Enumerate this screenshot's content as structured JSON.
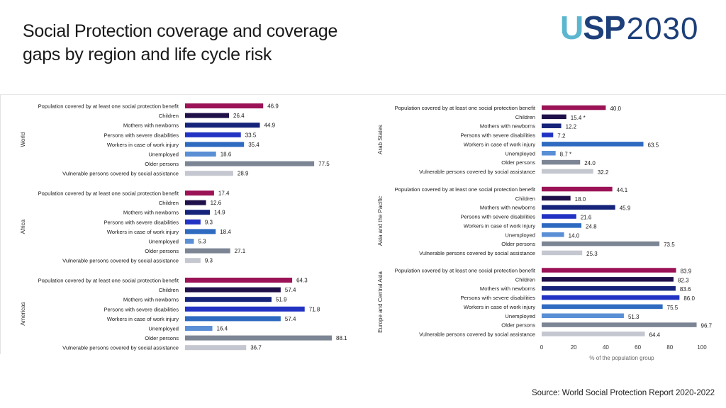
{
  "title": {
    "line1": "Social Protection coverage and coverage",
    "line2": "gaps by region and life cycle risk"
  },
  "logo": {
    "usp_u": "U",
    "usp_sp": "SP",
    "year": "2030"
  },
  "source": "Source: World Social Protection Report 2020-2022",
  "colors": {
    "primary": "#9b1256",
    "children": "#20104a",
    "mothers": "#15237a",
    "disabilities": "#2233c4",
    "work_injury": "#2e6ac0",
    "unemployed": "#5a8fd6",
    "older": "#7c8594",
    "vulnerable": "#c4c7cf"
  },
  "chart_data": {
    "type": "bar",
    "orientation": "horizontal",
    "xlabel": "% of the population group",
    "xlim": [
      0,
      100
    ],
    "xticks": [
      0,
      20,
      40,
      60,
      80,
      100
    ],
    "categories": [
      "Population covered by at least one social protection benefit",
      "Children",
      "Mothers with newborns",
      "Persons with severe disabilities",
      "Workers in case of work injury",
      "Unemployed",
      "Older persons",
      "Vulnerable persons covered by social assistance"
    ],
    "panels": [
      {
        "region": "World",
        "values": [
          46.9,
          26.4,
          44.9,
          33.5,
          35.4,
          18.6,
          77.5,
          28.9
        ],
        "labels": [
          "46.9",
          "26.4",
          "44.9",
          "33.5",
          "35.4",
          "18.6",
          "77.5",
          "28.9"
        ]
      },
      {
        "region": "Africa",
        "values": [
          17.4,
          12.6,
          14.9,
          9.3,
          18.4,
          5.3,
          27.1,
          9.3
        ],
        "labels": [
          "17.4",
          "12.6",
          "14.9",
          "9.3",
          "18.4",
          "5.3",
          "27.1",
          "9.3"
        ]
      },
      {
        "region": "Americas",
        "values": [
          64.3,
          57.4,
          51.9,
          71.8,
          57.4,
          16.4,
          88.1,
          36.7
        ],
        "labels": [
          "64.3",
          "57.4",
          "51.9",
          "71.8",
          "57.4",
          "16.4",
          "88.1",
          "36.7"
        ]
      },
      {
        "region": "Arab States",
        "values": [
          40.0,
          15.4,
          12.2,
          7.2,
          63.5,
          8.7,
          24.0,
          32.2
        ],
        "labels": [
          "40.0",
          "15.4 *",
          "12.2",
          "7.2",
          "63.5",
          "8.7 *",
          "24.0",
          "32.2"
        ]
      },
      {
        "region": "Asia and the Pacific",
        "values": [
          44.1,
          18.0,
          45.9,
          21.6,
          24.8,
          14.0,
          73.5,
          25.3
        ],
        "labels": [
          "44.1",
          "18.0",
          "45.9",
          "21.6",
          "24.8",
          "14.0",
          "73.5",
          "25.3"
        ]
      },
      {
        "region": "Europe and Central Asia",
        "values": [
          83.9,
          82.3,
          83.6,
          86.0,
          75.5,
          51.3,
          96.7,
          64.4
        ],
        "labels": [
          "83.9",
          "82.3",
          "83.6",
          "86.0",
          "75.5",
          "51.3",
          "96.7",
          "64.4"
        ]
      }
    ]
  }
}
